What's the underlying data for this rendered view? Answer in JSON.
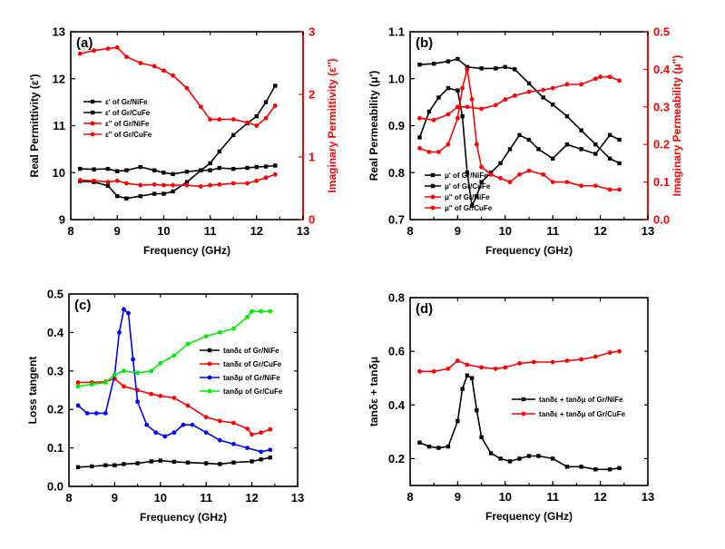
{
  "chart_data": [
    {
      "type": "line",
      "panel_label": "(a)",
      "xlabel": "Frequency (GHz)",
      "ylabel": "Real Permittivity (ε')",
      "ylabel_right": "Imaginary Permittivity (ε'')",
      "xlim": [
        8,
        13
      ],
      "ylim": [
        9,
        13
      ],
      "ylim_right": [
        0,
        3
      ],
      "xticks": [
        8,
        9,
        10,
        11,
        12,
        13
      ],
      "yticks": [
        9,
        10,
        11,
        12,
        13
      ],
      "yticks_right": [
        0,
        1,
        2,
        3
      ],
      "right_axis_color": "#ff0000",
      "legend_position": "left",
      "series": [
        {
          "name": "ε' of Gr/NiFe",
          "axis": "left",
          "color": "#000000",
          "marker": "square",
          "x": [
            8.2,
            8.5,
            8.8,
            9.0,
            9.2,
            9.5,
            9.8,
            10.0,
            10.2,
            10.5,
            10.8,
            11.0,
            11.2,
            11.5,
            11.8,
            12.0,
            12.2,
            12.4
          ],
          "y": [
            10.08,
            10.07,
            10.08,
            10.03,
            10.05,
            10.12,
            10.05,
            10.0,
            9.97,
            10.02,
            10.05,
            10.05,
            10.1,
            10.08,
            10.1,
            10.12,
            10.13,
            10.15
          ]
        },
        {
          "name": "ε' of Gr/CuFe",
          "axis": "left",
          "color": "#000000",
          "marker": "square",
          "x": [
            8.2,
            8.5,
            8.8,
            9.0,
            9.2,
            9.5,
            9.8,
            10.0,
            10.2,
            10.5,
            10.8,
            11.0,
            11.2,
            11.5,
            11.8,
            12.0,
            12.2,
            12.4
          ],
          "y": [
            9.82,
            9.8,
            9.72,
            9.5,
            9.45,
            9.5,
            9.55,
            9.55,
            9.6,
            9.8,
            10.05,
            10.2,
            10.45,
            10.8,
            11.05,
            11.2,
            11.5,
            11.85
          ]
        },
        {
          "name": "ε'' of Gr/NiFe",
          "axis": "right",
          "color": "#ff0000",
          "marker": "circle",
          "x": [
            8.2,
            8.5,
            8.8,
            9.0,
            9.2,
            9.5,
            9.8,
            10.0,
            10.2,
            10.5,
            10.8,
            11.0,
            11.2,
            11.5,
            11.8,
            12.0,
            12.2,
            12.4
          ],
          "y": [
            0.63,
            0.62,
            0.6,
            0.62,
            0.58,
            0.55,
            0.56,
            0.55,
            0.55,
            0.55,
            0.53,
            0.55,
            0.56,
            0.58,
            0.58,
            0.62,
            0.67,
            0.72
          ]
        },
        {
          "name": "ε'' of Gr/CuFe",
          "axis": "right",
          "color": "#ff0000",
          "marker": "circle",
          "x": [
            8.2,
            8.5,
            8.8,
            9.0,
            9.2,
            9.5,
            9.8,
            10.0,
            10.2,
            10.5,
            10.8,
            11.0,
            11.2,
            11.5,
            11.8,
            12.0,
            12.2,
            12.4
          ],
          "y": [
            2.65,
            2.7,
            2.73,
            2.75,
            2.6,
            2.5,
            2.45,
            2.38,
            2.3,
            2.1,
            1.8,
            1.6,
            1.6,
            1.6,
            1.55,
            1.5,
            1.62,
            1.82
          ]
        }
      ]
    },
    {
      "type": "line",
      "panel_label": "(b)",
      "xlabel": "Frequency (GHz)",
      "ylabel": "Real Permeability (μ')",
      "ylabel_right": "Imaginary Permeability (μ'')",
      "xlim": [
        8,
        13
      ],
      "ylim": [
        0.7,
        1.1
      ],
      "ylim_right": [
        0,
        0.5
      ],
      "xticks": [
        8,
        9,
        10,
        11,
        12,
        13
      ],
      "yticks": [
        0.7,
        0.8,
        0.9,
        1.0,
        1.1
      ],
      "yticks_right": [
        0.0,
        0.1,
        0.2,
        0.3,
        0.4,
        0.5
      ],
      "right_axis_color": "#ff0000",
      "legend_position": "bottom-left",
      "series": [
        {
          "name": "μ' of Gr/NiFe",
          "axis": "left",
          "color": "#000000",
          "marker": "square",
          "x": [
            8.2,
            8.4,
            8.6,
            8.8,
            9.0,
            9.1,
            9.2,
            9.3,
            9.4,
            9.5,
            9.7,
            9.9,
            10.1,
            10.3,
            10.5,
            10.7,
            11.0,
            11.3,
            11.6,
            11.9,
            12.2,
            12.4
          ],
          "y": [
            0.875,
            0.93,
            0.96,
            0.98,
            0.975,
            0.92,
            0.8,
            0.73,
            0.75,
            0.78,
            0.8,
            0.82,
            0.85,
            0.88,
            0.87,
            0.85,
            0.83,
            0.86,
            0.85,
            0.84,
            0.88,
            0.87
          ]
        },
        {
          "name": "μ' of Gr/CuFe",
          "axis": "left",
          "color": "#000000",
          "marker": "square",
          "x": [
            8.2,
            8.5,
            8.8,
            9.0,
            9.2,
            9.5,
            9.8,
            10.0,
            10.2,
            10.5,
            10.8,
            11.0,
            11.3,
            11.6,
            11.9,
            12.2,
            12.4
          ],
          "y": [
            1.03,
            1.032,
            1.037,
            1.042,
            1.025,
            1.022,
            1.022,
            1.025,
            1.02,
            0.99,
            0.96,
            0.945,
            0.92,
            0.89,
            0.86,
            0.83,
            0.82
          ]
        },
        {
          "name": "μ'' of Gr/NiFe",
          "axis": "right",
          "color": "#ff0000",
          "marker": "circle",
          "x": [
            8.2,
            8.4,
            8.6,
            8.8,
            9.0,
            9.1,
            9.2,
            9.3,
            9.4,
            9.5,
            9.7,
            9.9,
            10.1,
            10.3,
            10.5,
            10.8,
            11.0,
            11.3,
            11.6,
            11.9,
            12.2,
            12.4
          ],
          "y": [
            0.19,
            0.18,
            0.18,
            0.2,
            0.27,
            0.35,
            0.4,
            0.32,
            0.2,
            0.14,
            0.12,
            0.11,
            0.1,
            0.12,
            0.13,
            0.12,
            0.1,
            0.1,
            0.09,
            0.09,
            0.08,
            0.08
          ]
        },
        {
          "name": "μ'' of Gr/CuFe",
          "axis": "right",
          "color": "#ff0000",
          "marker": "circle",
          "x": [
            8.2,
            8.5,
            8.8,
            9.0,
            9.2,
            9.5,
            9.8,
            10.0,
            10.2,
            10.5,
            10.8,
            11.0,
            11.3,
            11.6,
            11.9,
            12.0,
            12.2,
            12.4
          ],
          "y": [
            0.27,
            0.265,
            0.28,
            0.3,
            0.3,
            0.295,
            0.305,
            0.32,
            0.33,
            0.34,
            0.345,
            0.35,
            0.36,
            0.36,
            0.375,
            0.38,
            0.38,
            0.37
          ]
        }
      ]
    },
    {
      "type": "line",
      "panel_label": "(c)",
      "xlabel": "Frequency (GHz)",
      "ylabel": "Loss tangent",
      "xlim": [
        8,
        13
      ],
      "ylim": [
        0.0,
        0.5
      ],
      "xticks": [
        8,
        9,
        10,
        11,
        12,
        13
      ],
      "yticks": [
        0.0,
        0.1,
        0.2,
        0.3,
        0.4,
        0.5
      ],
      "legend_position": "right",
      "series": [
        {
          "name": "tanδε of Gr/NiFe",
          "color": "#000000",
          "marker": "square",
          "x": [
            8.2,
            8.5,
            8.8,
            9.0,
            9.2,
            9.5,
            9.8,
            10.0,
            10.3,
            10.6,
            11.0,
            11.3,
            11.6,
            12.0,
            12.2,
            12.4
          ],
          "y": [
            0.05,
            0.052,
            0.055,
            0.055,
            0.058,
            0.06,
            0.065,
            0.067,
            0.064,
            0.062,
            0.06,
            0.058,
            0.062,
            0.065,
            0.07,
            0.075
          ]
        },
        {
          "name": "tanδε of Gr/CuFe",
          "color": "#ff0000",
          "marker": "circle",
          "x": [
            8.2,
            8.5,
            8.8,
            9.0,
            9.2,
            9.5,
            9.8,
            10.0,
            10.3,
            10.6,
            11.0,
            11.3,
            11.6,
            11.9,
            12.0,
            12.2,
            12.4
          ],
          "y": [
            0.27,
            0.27,
            0.272,
            0.28,
            0.26,
            0.25,
            0.24,
            0.235,
            0.23,
            0.21,
            0.18,
            0.17,
            0.165,
            0.15,
            0.135,
            0.14,
            0.148
          ]
        },
        {
          "name": "tanδμ of Gr/NiFe",
          "color": "#0000ff",
          "marker": "circle",
          "x": [
            8.2,
            8.4,
            8.6,
            8.8,
            9.0,
            9.1,
            9.2,
            9.3,
            9.4,
            9.5,
            9.7,
            9.9,
            10.1,
            10.3,
            10.5,
            10.7,
            11.0,
            11.3,
            11.6,
            11.9,
            12.2,
            12.4
          ],
          "y": [
            0.21,
            0.19,
            0.19,
            0.19,
            0.29,
            0.4,
            0.46,
            0.45,
            0.33,
            0.22,
            0.16,
            0.14,
            0.13,
            0.14,
            0.16,
            0.16,
            0.14,
            0.12,
            0.11,
            0.1,
            0.09,
            0.095
          ]
        },
        {
          "name": "tanδμ of Gr/CuFe",
          "color": "#00ee00",
          "marker": "circle",
          "x": [
            8.2,
            8.5,
            8.8,
            9.0,
            9.2,
            9.5,
            9.8,
            10.0,
            10.3,
            10.6,
            11.0,
            11.3,
            11.6,
            11.9,
            12.0,
            12.2,
            12.4
          ],
          "y": [
            0.26,
            0.265,
            0.27,
            0.29,
            0.3,
            0.295,
            0.3,
            0.32,
            0.34,
            0.37,
            0.39,
            0.4,
            0.41,
            0.44,
            0.455,
            0.455,
            0.455
          ]
        }
      ]
    },
    {
      "type": "line",
      "panel_label": "(d)",
      "xlabel": "Frequency (GHz)",
      "ylabel": "tanδε + tanδμ",
      "xlim": [
        8,
        13
      ],
      "ylim": [
        0.1,
        0.8
      ],
      "xticks": [
        8,
        9,
        10,
        11,
        12,
        13
      ],
      "yticks": [
        0.2,
        0.4,
        0.6,
        0.8
      ],
      "legend_position": "right",
      "series": [
        {
          "name": "tanδε + tanδμ of Gr/NiFe",
          "color": "#000000",
          "marker": "square",
          "x": [
            8.2,
            8.4,
            8.6,
            8.8,
            9.0,
            9.1,
            9.2,
            9.3,
            9.4,
            9.5,
            9.7,
            9.9,
            10.1,
            10.3,
            10.5,
            10.7,
            11.0,
            11.3,
            11.6,
            11.9,
            12.2,
            12.4
          ],
          "y": [
            0.26,
            0.245,
            0.24,
            0.245,
            0.34,
            0.46,
            0.51,
            0.5,
            0.38,
            0.28,
            0.22,
            0.2,
            0.19,
            0.2,
            0.21,
            0.21,
            0.2,
            0.17,
            0.17,
            0.16,
            0.16,
            0.165
          ]
        },
        {
          "name": "tanδε + tanδμ of Gr/CuFe",
          "color": "#ff0000",
          "marker": "circle",
          "x": [
            8.2,
            8.5,
            8.8,
            9.0,
            9.2,
            9.5,
            9.8,
            10.0,
            10.3,
            10.6,
            11.0,
            11.3,
            11.6,
            11.9,
            12.2,
            12.4
          ],
          "y": [
            0.525,
            0.525,
            0.535,
            0.565,
            0.55,
            0.54,
            0.535,
            0.54,
            0.555,
            0.56,
            0.56,
            0.565,
            0.57,
            0.58,
            0.595,
            0.6
          ]
        }
      ]
    }
  ]
}
